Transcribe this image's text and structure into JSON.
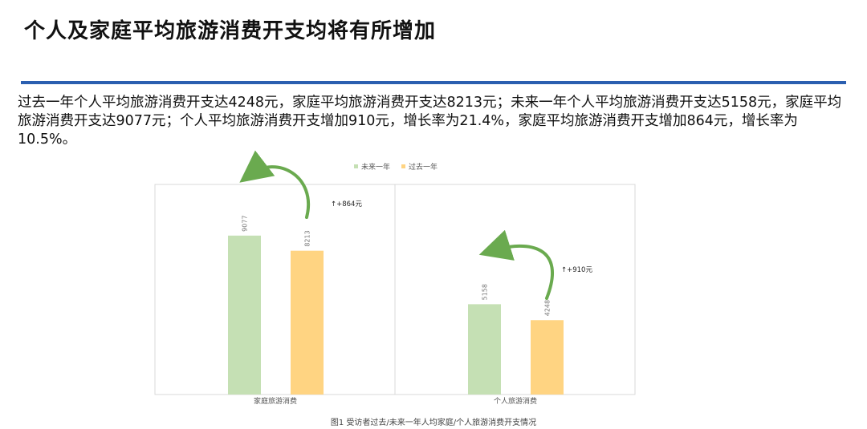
{
  "page": {
    "title": "个人及家庭平均旅游消费开支均将有所增加",
    "description": "过去一年个人平均旅游消费开支达4248元，家庭平均旅游消费开支达8213元；未来一年个人平均旅游消费开支达5158元，家庭平均旅游消费开支达9077元；个人平均旅游消费开支增加910元，增长率为21.4%，家庭平均旅游消费开支增加864元，增长率为10.5%。",
    "caption": "图1 受访者过去/未来一年人均家庭/个人旅游消费开支情况",
    "accent_color": "#2b5fb0"
  },
  "chart_data": {
    "type": "bar",
    "categories": [
      "家庭旅游消费",
      "个人旅游消费"
    ],
    "series": [
      {
        "name": "未来一年",
        "values": [
          9077,
          5158
        ],
        "color": "#c5e0b4"
      },
      {
        "name": "过去一年",
        "values": [
          8213,
          4248
        ],
        "color": "#ffd482"
      }
    ],
    "legend_position": "top",
    "annotations": [
      "↑+864元",
      "↑+910元"
    ],
    "ylim": [
      0,
      12000
    ],
    "grid": false,
    "arrow_color": "#6aaa4f"
  }
}
